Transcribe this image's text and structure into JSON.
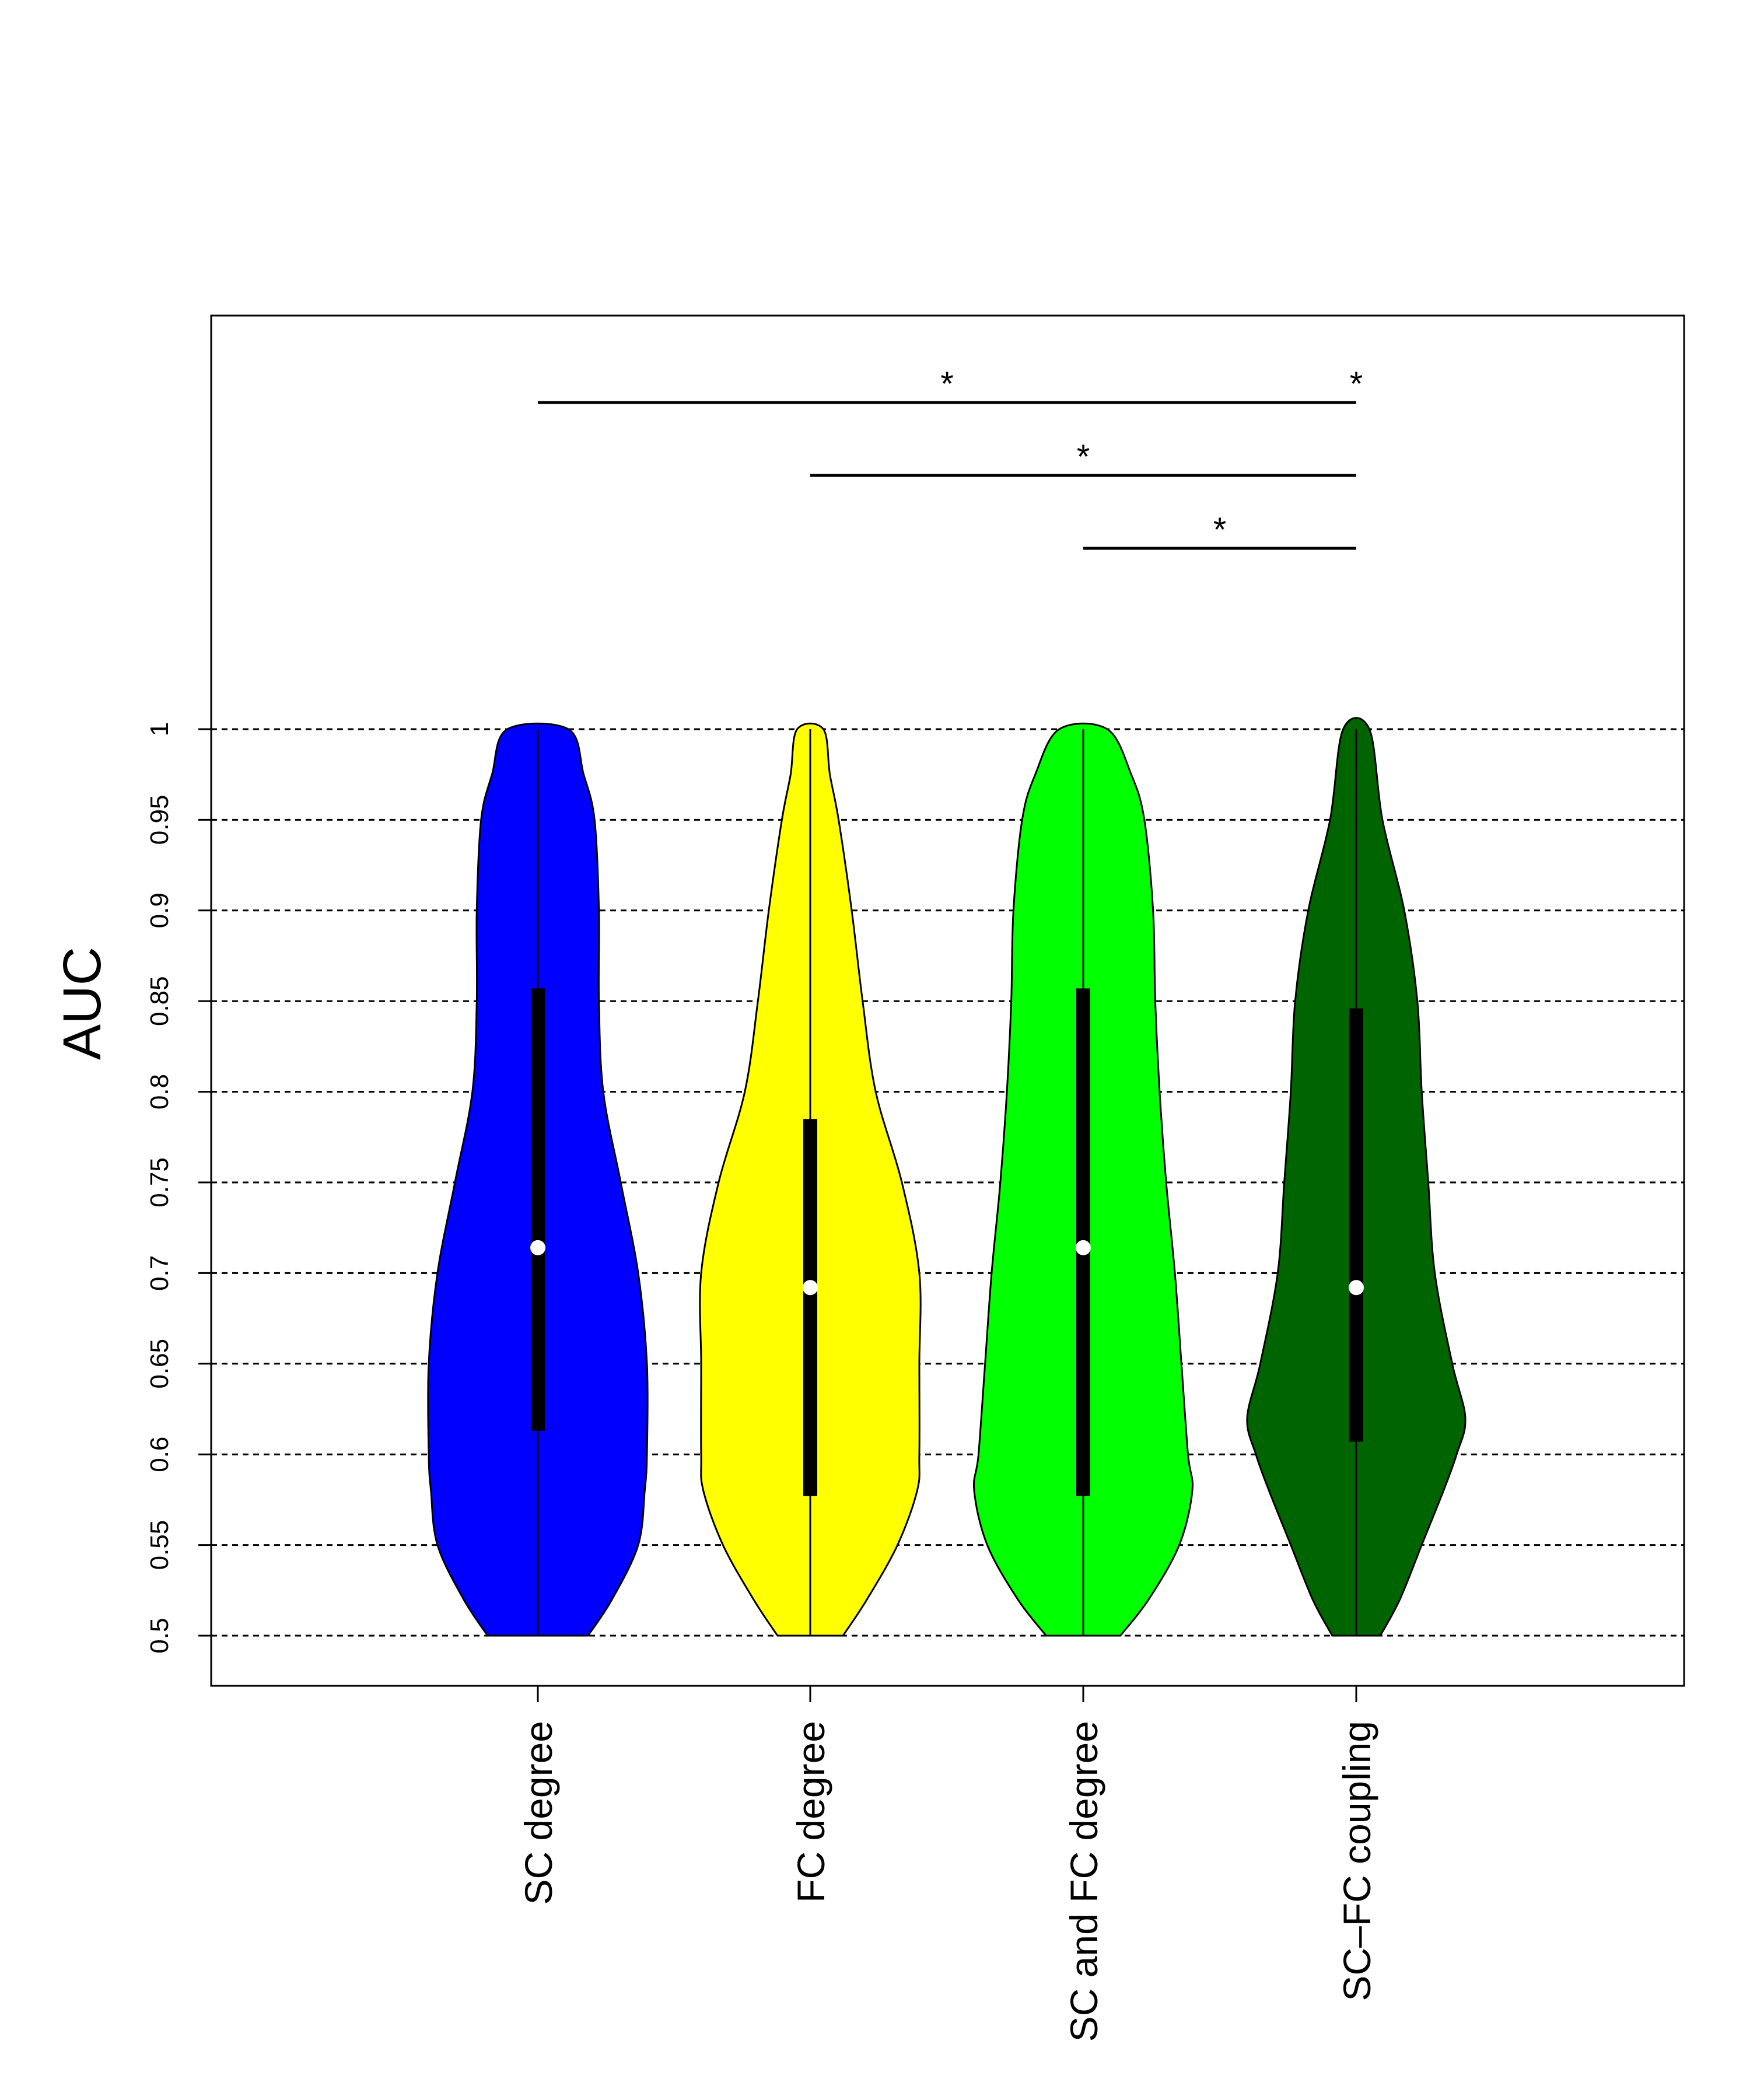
{
  "chart_data": {
    "type": "violin",
    "ylabel": "AUC",
    "xlabel": "",
    "title": "",
    "ylim": [
      0.5,
      1
    ],
    "yticks": [
      0.5,
      0.55,
      0.6,
      0.65,
      0.7,
      0.75,
      0.8,
      0.85,
      0.9,
      0.95,
      1
    ],
    "ytick_labels": [
      "0.5",
      "0.55",
      "0.6",
      "0.65",
      "0.7",
      "0.75",
      "0.8",
      "0.85",
      "0.9",
      "0.95",
      "1"
    ],
    "grid": "horizontal dashed at y ticks",
    "categories": [
      "SC degree",
      "FC degree",
      "SC and FC degree",
      "SC–FC coupling"
    ],
    "series": [
      {
        "category": "SC degree",
        "color": "#0000ff",
        "median": 0.714,
        "q1": 0.613,
        "q3": 0.857,
        "min": 0.5,
        "max": 1,
        "density_profile": [
          {
            "y": 0.5,
            "w": 0.23
          },
          {
            "y": 0.52,
            "w": 0.34
          },
          {
            "y": 0.55,
            "w": 0.46
          },
          {
            "y": 0.58,
            "w": 0.49
          },
          {
            "y": 0.6,
            "w": 0.5
          },
          {
            "y": 0.65,
            "w": 0.5
          },
          {
            "y": 0.7,
            "w": 0.46
          },
          {
            "y": 0.75,
            "w": 0.38
          },
          {
            "y": 0.8,
            "w": 0.3
          },
          {
            "y": 0.85,
            "w": 0.28
          },
          {
            "y": 0.9,
            "w": 0.28
          },
          {
            "y": 0.95,
            "w": 0.26
          },
          {
            "y": 0.975,
            "w": 0.21
          },
          {
            "y": 1.0,
            "w": 0.14
          }
        ]
      },
      {
        "category": "FC degree",
        "color": "#ffff00",
        "median": 0.692,
        "q1": 0.577,
        "q3": 0.785,
        "min": 0.5,
        "max": 1,
        "density_profile": [
          {
            "y": 0.5,
            "w": 0.15
          },
          {
            "y": 0.52,
            "w": 0.26
          },
          {
            "y": 0.55,
            "w": 0.4
          },
          {
            "y": 0.58,
            "w": 0.49
          },
          {
            "y": 0.6,
            "w": 0.5
          },
          {
            "y": 0.65,
            "w": 0.5
          },
          {
            "y": 0.7,
            "w": 0.5
          },
          {
            "y": 0.75,
            "w": 0.42
          },
          {
            "y": 0.8,
            "w": 0.3
          },
          {
            "y": 0.85,
            "w": 0.24
          },
          {
            "y": 0.9,
            "w": 0.19
          },
          {
            "y": 0.95,
            "w": 0.13
          },
          {
            "y": 0.975,
            "w": 0.09
          },
          {
            "y": 1.0,
            "w": 0.06
          }
        ]
      },
      {
        "category": "SC and FC degree",
        "color": "#00ff00",
        "median": 0.714,
        "q1": 0.577,
        "q3": 0.857,
        "min": 0.5,
        "max": 1,
        "density_profile": [
          {
            "y": 0.5,
            "w": 0.17
          },
          {
            "y": 0.52,
            "w": 0.3
          },
          {
            "y": 0.55,
            "w": 0.44
          },
          {
            "y": 0.58,
            "w": 0.5
          },
          {
            "y": 0.6,
            "w": 0.48
          },
          {
            "y": 0.65,
            "w": 0.45
          },
          {
            "y": 0.7,
            "w": 0.42
          },
          {
            "y": 0.75,
            "w": 0.38
          },
          {
            "y": 0.8,
            "w": 0.35
          },
          {
            "y": 0.85,
            "w": 0.33
          },
          {
            "y": 0.9,
            "w": 0.32
          },
          {
            "y": 0.95,
            "w": 0.28
          },
          {
            "y": 0.975,
            "w": 0.22
          },
          {
            "y": 1.0,
            "w": 0.11
          }
        ]
      },
      {
        "category": "SC–FC coupling",
        "color": "#006400",
        "median": 0.692,
        "q1": 0.607,
        "q3": 0.846,
        "min": 0.5,
        "max": 1,
        "density_profile": [
          {
            "y": 0.5,
            "w": 0.11
          },
          {
            "y": 0.52,
            "w": 0.2
          },
          {
            "y": 0.55,
            "w": 0.3
          },
          {
            "y": 0.58,
            "w": 0.4
          },
          {
            "y": 0.6,
            "w": 0.46
          },
          {
            "y": 0.62,
            "w": 0.5
          },
          {
            "y": 0.65,
            "w": 0.44
          },
          {
            "y": 0.7,
            "w": 0.36
          },
          {
            "y": 0.75,
            "w": 0.33
          },
          {
            "y": 0.8,
            "w": 0.3
          },
          {
            "y": 0.85,
            "w": 0.28
          },
          {
            "y": 0.9,
            "w": 0.22
          },
          {
            "y": 0.95,
            "w": 0.12
          },
          {
            "y": 1.0,
            "w": 0.06
          }
        ]
      }
    ],
    "significance": [
      {
        "from": "SC degree",
        "to": "SC–FC coupling",
        "label": "*",
        "level": 1
      },
      {
        "from": "FC degree",
        "to": "SC–FC coupling",
        "label": "*",
        "level": 2
      },
      {
        "from": "SC and FC degree",
        "to": "SC–FC coupling",
        "label": "*",
        "level": 3
      }
    ],
    "extra_marks": [
      {
        "label": "*",
        "at": "SC–FC coupling",
        "level": 1
      }
    ]
  }
}
